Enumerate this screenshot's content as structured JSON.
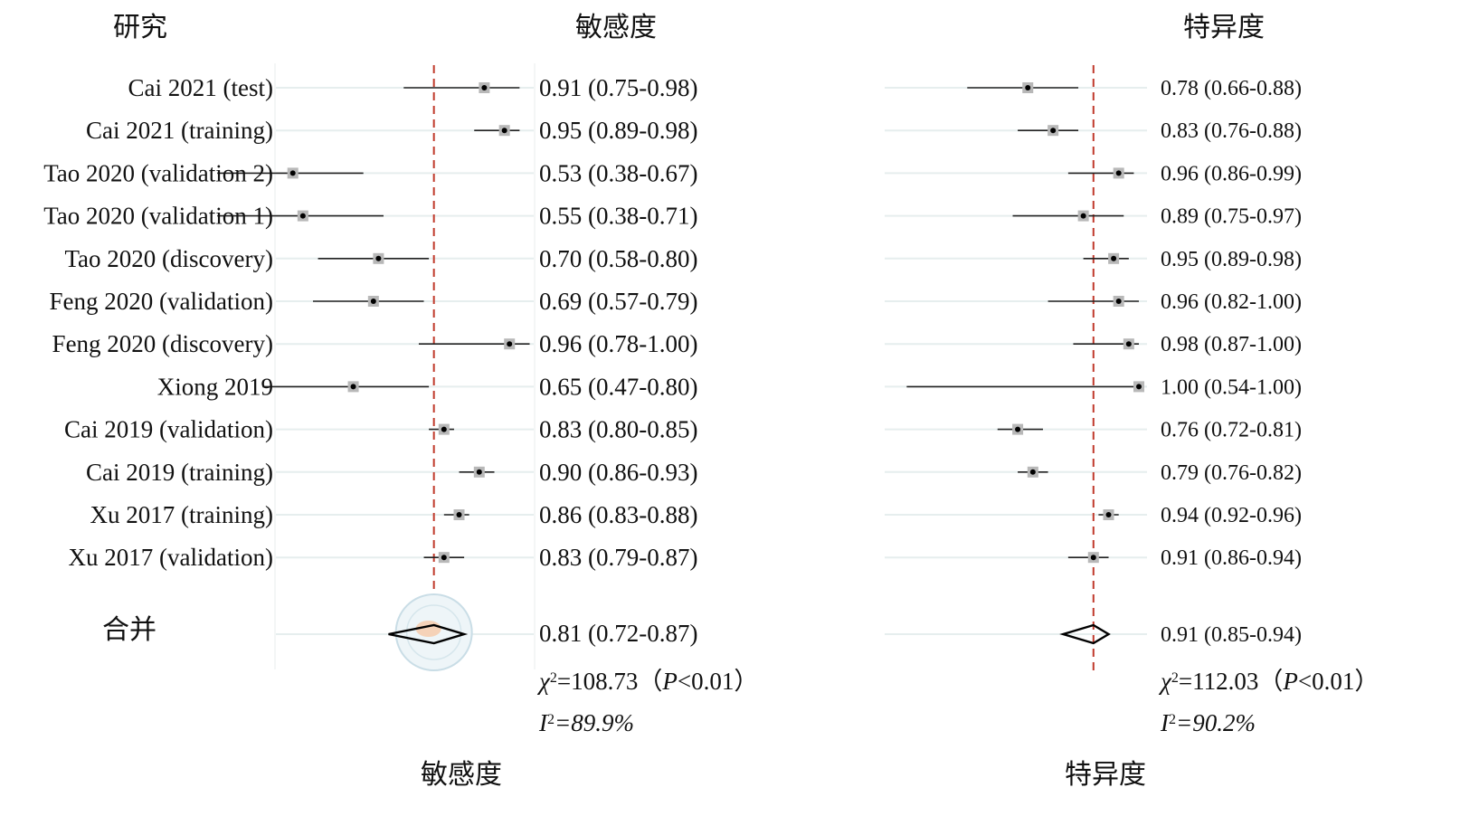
{
  "chart_data": {
    "type": "forest",
    "headers": {
      "study": "研究",
      "sensitivity": "敏感度",
      "specificity": "特异度"
    },
    "studies": [
      {
        "name": "Cai 2021 (test)",
        "sens": 0.91,
        "sens_lo": 0.75,
        "sens_hi": 0.98,
        "sens_label": "0.91 (0.75-0.98)",
        "spec": 0.78,
        "spec_lo": 0.66,
        "spec_hi": 0.88,
        "spec_label": "0.78 (0.66-0.88)"
      },
      {
        "name": "Cai 2021 (training)",
        "sens": 0.95,
        "sens_lo": 0.89,
        "sens_hi": 0.98,
        "sens_label": "0.95 (0.89-0.98)",
        "spec": 0.83,
        "spec_lo": 0.76,
        "spec_hi": 0.88,
        "spec_label": "0.83 (0.76-0.88)"
      },
      {
        "name": "Tao 2020 (validation 2)",
        "sens": 0.53,
        "sens_lo": 0.38,
        "sens_hi": 0.67,
        "sens_label": "0.53 (0.38-0.67)",
        "spec": 0.96,
        "spec_lo": 0.86,
        "spec_hi": 0.99,
        "spec_label": "0.96 (0.86-0.99)"
      },
      {
        "name": "Tao 2020 (validation 1)",
        "sens": 0.55,
        "sens_lo": 0.38,
        "sens_hi": 0.71,
        "sens_label": "0.55 (0.38-0.71)",
        "spec": 0.89,
        "spec_lo": 0.75,
        "spec_hi": 0.97,
        "spec_label": "0.89 (0.75-0.97)"
      },
      {
        "name": "Tao 2020 (discovery)",
        "sens": 0.7,
        "sens_lo": 0.58,
        "sens_hi": 0.8,
        "sens_label": "0.70 (0.58-0.80)",
        "spec": 0.95,
        "spec_lo": 0.89,
        "spec_hi": 0.98,
        "spec_label": "0.95 (0.89-0.98)"
      },
      {
        "name": "Feng 2020 (validation)",
        "sens": 0.69,
        "sens_lo": 0.57,
        "sens_hi": 0.79,
        "sens_label": "0.69 (0.57-0.79)",
        "spec": 0.96,
        "spec_lo": 0.82,
        "spec_hi": 1.0,
        "spec_label": "0.96 (0.82-1.00)"
      },
      {
        "name": "Feng 2020 (discovery)",
        "sens": 0.96,
        "sens_lo": 0.78,
        "sens_hi": 1.0,
        "sens_label": "0.96 (0.78-1.00)",
        "spec": 0.98,
        "spec_lo": 0.87,
        "spec_hi": 1.0,
        "spec_label": "0.98 (0.87-1.00)"
      },
      {
        "name": "Xiong 2019",
        "sens": 0.65,
        "sens_lo": 0.47,
        "sens_hi": 0.8,
        "sens_label": "0.65 (0.47-0.80)",
        "spec": 1.0,
        "spec_lo": 0.54,
        "spec_hi": 1.0,
        "spec_label": "1.00 (0.54-1.00)"
      },
      {
        "name": "Cai 2019 (validation)",
        "sens": 0.83,
        "sens_lo": 0.8,
        "sens_hi": 0.85,
        "sens_label": "0.83 (0.80-0.85)",
        "spec": 0.76,
        "spec_lo": 0.72,
        "spec_hi": 0.81,
        "spec_label": "0.76 (0.72-0.81)"
      },
      {
        "name": "Cai 2019 (training)",
        "sens": 0.9,
        "sens_lo": 0.86,
        "sens_hi": 0.93,
        "sens_label": "0.90 (0.86-0.93)",
        "spec": 0.79,
        "spec_lo": 0.76,
        "spec_hi": 0.82,
        "spec_label": "0.79 (0.76-0.82)"
      },
      {
        "name": "Xu 2017 (training)",
        "sens": 0.86,
        "sens_lo": 0.83,
        "sens_hi": 0.88,
        "sens_label": "0.86 (0.83-0.88)",
        "spec": 0.94,
        "spec_lo": 0.92,
        "spec_hi": 0.96,
        "spec_label": "0.94 (0.92-0.96)"
      },
      {
        "name": "Xu 2017 (validation)",
        "sens": 0.83,
        "sens_lo": 0.79,
        "sens_hi": 0.87,
        "sens_label": "0.83 (0.79-0.87)",
        "spec": 0.91,
        "spec_lo": 0.86,
        "spec_hi": 0.94,
        "spec_label": "0.91 (0.86-0.94)"
      }
    ],
    "pooled": {
      "name": "合并",
      "sens": 0.81,
      "sens_lo": 0.72,
      "sens_hi": 0.87,
      "sens_label": "0.81 (0.72-0.87)",
      "spec": 0.91,
      "spec_lo": 0.85,
      "spec_hi": 0.94,
      "spec_label": "0.91 (0.85-0.94)"
    },
    "sens_stats": {
      "chi2_prefix": "=108.73（",
      "p_text": "<0.01）",
      "i2_text": "=89.9%"
    },
    "spec_stats": {
      "chi2_prefix": "=112.03（",
      "p_text": "<0.01）",
      "i2_text": "=90.2%"
    },
    "xlabel_sens": "敏感度",
    "xlabel_spec": "特异度",
    "sens_xrange": [
      0.5,
      1.0
    ],
    "spec_xrange": [
      0.5,
      1.0
    ],
    "reference_line": "pooled estimate",
    "colors": {
      "reference_line": "#c0392b",
      "marker_box": "#b8b8b8",
      "ci_line": "#222222",
      "row_guide": "#e6eeee"
    }
  }
}
